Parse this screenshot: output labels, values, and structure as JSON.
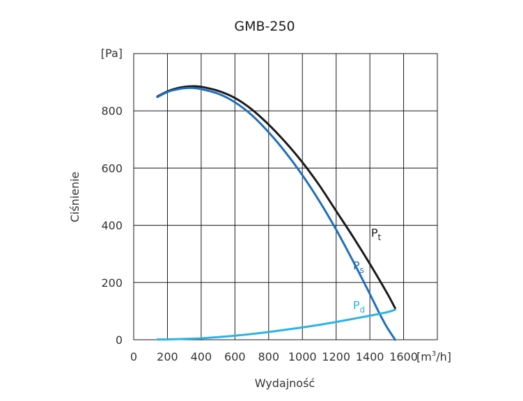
{
  "chart_data": {
    "type": "line",
    "title": "GMB-250",
    "xlabel": "Wydajność",
    "ylabel": "Ciśnienie",
    "x_unit_prefix": "[m",
    "x_unit_sup": "3",
    "x_unit_suffix": "/h]",
    "y_unit": "[Pa]",
    "xlim": [
      0,
      1800
    ],
    "ylim": [
      0,
      1000
    ],
    "x_ticks": [
      0,
      200,
      400,
      600,
      800,
      1000,
      1200,
      1400,
      1600
    ],
    "y_ticks": [
      0,
      200,
      400,
      600,
      800
    ],
    "grid": true,
    "series": [
      {
        "name": "Pt",
        "label_main": "P",
        "label_sub": "t",
        "color": "#1a1a1a",
        "x": [
          140,
          200,
          250,
          300,
          350,
          400,
          500,
          600,
          700,
          800,
          900,
          1000,
          1100,
          1200,
          1300,
          1400,
          1500,
          1550
        ],
        "y": [
          850,
          868,
          878,
          884,
          886,
          884,
          870,
          845,
          805,
          752,
          690,
          620,
          540,
          450,
          360,
          265,
          165,
          110
        ]
      },
      {
        "name": "Ps",
        "label_main": "P",
        "label_sub": "s",
        "color": "#1f6fbd",
        "x": [
          140,
          200,
          250,
          300,
          350,
          400,
          500,
          600,
          700,
          800,
          900,
          1000,
          1100,
          1200,
          1300,
          1400,
          1450,
          1500,
          1550
        ],
        "y": [
          848,
          866,
          874,
          879,
          880,
          876,
          860,
          830,
          785,
          725,
          655,
          575,
          485,
          385,
          275,
          160,
          100,
          45,
          0
        ]
      },
      {
        "name": "Pd",
        "label_main": "P",
        "label_sub": "d",
        "color": "#2bb3e6",
        "x": [
          140,
          200,
          300,
          400,
          500,
          600,
          700,
          800,
          900,
          1000,
          1100,
          1200,
          1300,
          1400,
          1500,
          1550
        ],
        "y": [
          1,
          1,
          3,
          5,
          9,
          14,
          20,
          27,
          35,
          43,
          52,
          62,
          73,
          84,
          96,
          105
        ]
      }
    ]
  }
}
